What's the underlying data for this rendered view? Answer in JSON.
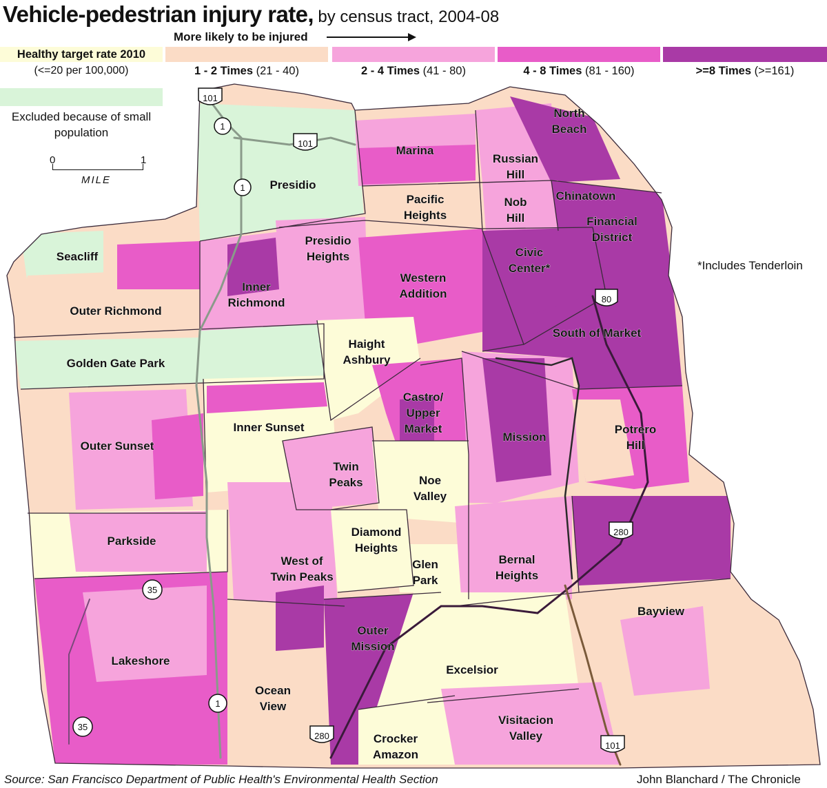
{
  "title": {
    "main": "Vehicle-pedestrian injury rate,",
    "sub": "by census tract, 2004-08"
  },
  "legend": {
    "arrow_label": "More likely to be injured",
    "target": {
      "label": "Healthy target rate 2010",
      "range": "(<=20 per 100,000)",
      "color": "#fdfcd8"
    },
    "categories": [
      {
        "label": "1 - 2 Times",
        "range": "(21 - 40)",
        "color": "#fbdcc6"
      },
      {
        "label": "2 - 4 Times",
        "range": "(41 - 80)",
        "color": "#f6a4dc"
      },
      {
        "label": "4 - 8 Times",
        "range": "(81 - 160)",
        "color": "#e85cc8"
      },
      {
        "label": ">=8 Times",
        "range": "(>=161)",
        "color": "#a93aa6"
      }
    ],
    "excluded": {
      "label": "Excluded because of small population",
      "color": "#d9f4d9"
    }
  },
  "scale": {
    "start": "0",
    "end": "1",
    "unit": "MILE"
  },
  "footnote": "*Includes Tenderloin",
  "source": "Source: San Francisco Department of Public Health's Environmental Health Section",
  "credit": "John Blanchard / The Chronicle",
  "neighborhoods": [
    {
      "name": "Presidio",
      "rate_class": "excluded"
    },
    {
      "name": "Marina",
      "rate_class": "2-4"
    },
    {
      "name": "North Beach",
      "rate_class": ">=8"
    },
    {
      "name": "Russian Hill",
      "rate_class": "2-4"
    },
    {
      "name": "Chinatown",
      "rate_class": ">=8"
    },
    {
      "name": "Nob Hill",
      "rate_class": "4-8"
    },
    {
      "name": "Financial District",
      "rate_class": ">=8"
    },
    {
      "name": "Pacific Heights",
      "rate_class": "1-2"
    },
    {
      "name": "Seacliff",
      "rate_class": "excluded"
    },
    {
      "name": "Presidio Heights",
      "rate_class": "2-4"
    },
    {
      "name": "Civic Center*",
      "rate_class": ">=8"
    },
    {
      "name": "Outer Richmond",
      "rate_class": "1-2"
    },
    {
      "name": "Inner Richmond",
      "rate_class": "4-8"
    },
    {
      "name": "Western Addition",
      "rate_class": "4-8"
    },
    {
      "name": "South of Market",
      "rate_class": ">=8"
    },
    {
      "name": "Golden Gate Park",
      "rate_class": "excluded"
    },
    {
      "name": "Haight Ashbury",
      "rate_class": "target"
    },
    {
      "name": "Castro/ Upper Market",
      "rate_class": "4-8"
    },
    {
      "name": "Outer Sunset",
      "rate_class": "2-4"
    },
    {
      "name": "Inner Sunset",
      "rate_class": "target"
    },
    {
      "name": "Mission",
      "rate_class": ">=8"
    },
    {
      "name": "Potrero Hill",
      "rate_class": "4-8"
    },
    {
      "name": "Twin Peaks",
      "rate_class": "2-4"
    },
    {
      "name": "Noe Valley",
      "rate_class": "target"
    },
    {
      "name": "Parkside",
      "rate_class": "2-4"
    },
    {
      "name": "Diamond Heights",
      "rate_class": "target"
    },
    {
      "name": "West of Twin Peaks",
      "rate_class": "2-4"
    },
    {
      "name": "Glen Park",
      "rate_class": "target"
    },
    {
      "name": "Bernal Heights",
      "rate_class": "2-4"
    },
    {
      "name": "Bayview",
      "rate_class": "1-2"
    },
    {
      "name": "Lakeshore",
      "rate_class": "4-8"
    },
    {
      "name": "Outer Mission",
      "rate_class": "2-4"
    },
    {
      "name": "Excelsior",
      "rate_class": "target"
    },
    {
      "name": "Ocean View",
      "rate_class": "1-2"
    },
    {
      "name": "Visitacion Valley",
      "rate_class": "2-4"
    },
    {
      "name": "Crocker Amazon",
      "rate_class": "target"
    }
  ],
  "highways": [
    "101",
    "1",
    "101",
    "1",
    "80",
    "280",
    "35",
    "1",
    "35",
    "280",
    "101"
  ]
}
